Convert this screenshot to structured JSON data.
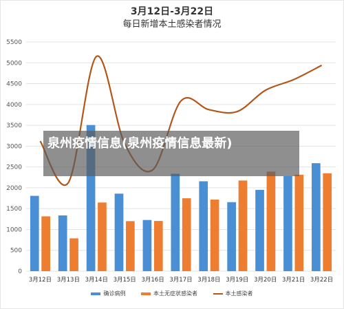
{
  "header": {
    "title": "3月12日-3月22日",
    "subtitle": "每日新增本土感染者情况"
  },
  "overlay": {
    "text": "泉州疫情信息(泉州疫情信息最新)"
  },
  "legend": {
    "items": [
      {
        "label": "确诊病例",
        "color": "#4a8fd4",
        "kind": "bar"
      },
      {
        "label": "本土无症状感染者",
        "color": "#ed7d31",
        "kind": "bar"
      },
      {
        "label": "本土感染者",
        "color": "#b2561a",
        "kind": "line"
      }
    ]
  },
  "chart_data": {
    "type": "bar",
    "categories": [
      "3月12日",
      "3月13日",
      "3月14日",
      "3月15日",
      "3月16日",
      "3月17日",
      "3月18日",
      "3月19日",
      "3月20日",
      "3月21日",
      "3月22日"
    ],
    "series": [
      {
        "name": "确诊病例",
        "type": "bar",
        "color": "#4a8fd4",
        "values": [
          1807,
          1337,
          3507,
          1860,
          1228,
          2337,
          2157,
          1656,
          1951,
          2281,
          2591
        ]
      },
      {
        "name": "本土无症状感染者",
        "type": "bar",
        "color": "#ed7d31",
        "values": [
          1315,
          787,
          1647,
          1200,
          1204,
          1749,
          1717,
          2175,
          2389,
          2314,
          2349
        ]
      },
      {
        "name": "本土感染者",
        "type": "line",
        "color": "#b2561a",
        "values": [
          3122,
          2124,
          5154,
          3060,
          2432,
          4086,
          3874,
          3831,
          4340,
          4595,
          4940
        ]
      }
    ],
    "yticks": [
      "0",
      "500",
      "1000",
      "1500",
      "2000",
      "2500",
      "3000",
      "3500",
      "4000",
      "4500",
      "5000",
      "5500"
    ],
    "ylim": [
      0,
      5500
    ],
    "grid": true,
    "legend_position": "bottom"
  }
}
